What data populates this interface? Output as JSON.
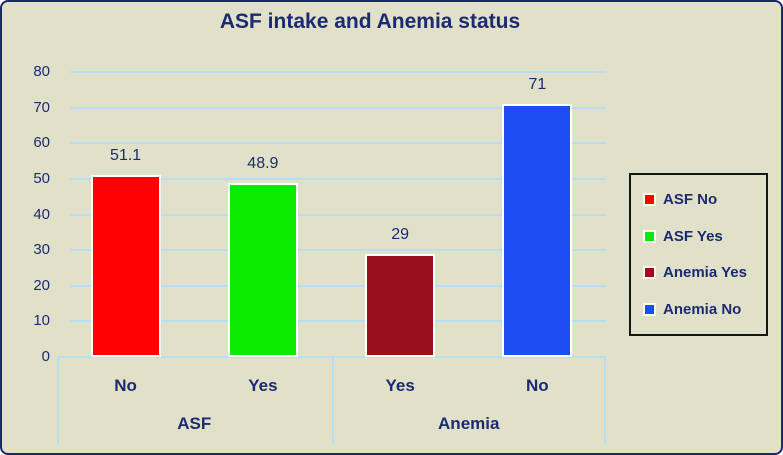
{
  "figure": {
    "title": "ASF intake and Anemia status"
  },
  "colors": {
    "background": "#e0e1c8",
    "figure_border": "#1b2a6e",
    "grid": "#b9ddf3",
    "text": "#1c2a74",
    "legend_border": "#151515",
    "bar_border": "#ffffff"
  },
  "chart_data": {
    "type": "bar",
    "title": "ASF intake and Anemia status",
    "ylim": [
      0,
      80
    ],
    "y_ticks": [
      0,
      10,
      20,
      30,
      40,
      50,
      60,
      70,
      80
    ],
    "grid": true,
    "groups": [
      {
        "label": "ASF",
        "bars": [
          {
            "category": "No",
            "series": "ASF No",
            "value": 51.1,
            "value_label": "51.1",
            "color": "#fe0202"
          },
          {
            "category": "Yes",
            "series": "ASF Yes",
            "value": 48.9,
            "value_label": "48.9",
            "color": "#0bea00"
          }
        ]
      },
      {
        "label": "Anemia",
        "bars": [
          {
            "category": "Yes",
            "series": "Anemia Yes",
            "value": 29,
            "value_label": "29",
            "color": "#9a0e1d"
          },
          {
            "category": "No",
            "series": "Anemia No",
            "value": 71,
            "value_label": "71",
            "color": "#1b4df2"
          }
        ]
      }
    ],
    "legend": {
      "position": "right",
      "entries": [
        {
          "label": "ASF No",
          "color": "#fe0202"
        },
        {
          "label": "ASF Yes",
          "color": "#0bea00"
        },
        {
          "label": "Anemia Yes",
          "color": "#9a0e1d"
        },
        {
          "label": "Anemia No",
          "color": "#1b4df2"
        }
      ]
    }
  }
}
